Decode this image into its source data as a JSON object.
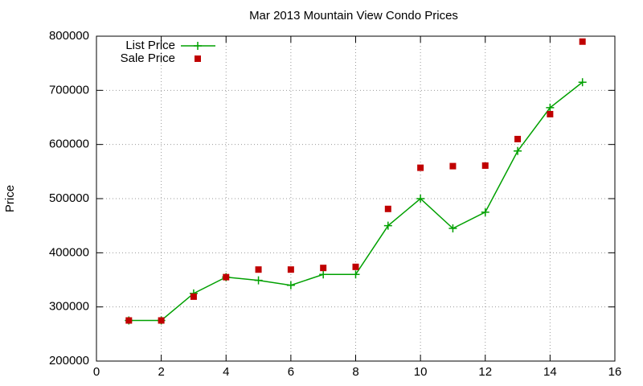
{
  "chart_data": {
    "type": "line",
    "title": "Mar 2013 Mountain View Condo Prices",
    "ylabel": "Price",
    "x": [
      1,
      2,
      3,
      4,
      5,
      6,
      7,
      8,
      9,
      10,
      11,
      12,
      13,
      14,
      15
    ],
    "series": [
      {
        "name": "List Price",
        "color": "#00a000",
        "mode": "lines+markers",
        "values": [
          275000,
          275000,
          325000,
          355000,
          349000,
          340000,
          360000,
          360000,
          450000,
          500000,
          445000,
          475000,
          588000,
          668000,
          715000
        ]
      },
      {
        "name": "Sale Price",
        "color": "#c00000",
        "mode": "markers",
        "values": [
          275000,
          275000,
          319000,
          355000,
          369000,
          369000,
          372000,
          374000,
          481000,
          557000,
          560000,
          561000,
          610000,
          656000,
          790000
        ]
      }
    ],
    "xlim": [
      0,
      16
    ],
    "xticks": [
      0,
      2,
      4,
      6,
      8,
      10,
      12,
      14,
      16
    ],
    "ylim": [
      200000,
      800000
    ],
    "yticks": [
      200000,
      300000,
      400000,
      500000,
      600000,
      700000,
      800000
    ],
    "grid": true,
    "legend": "top left"
  }
}
